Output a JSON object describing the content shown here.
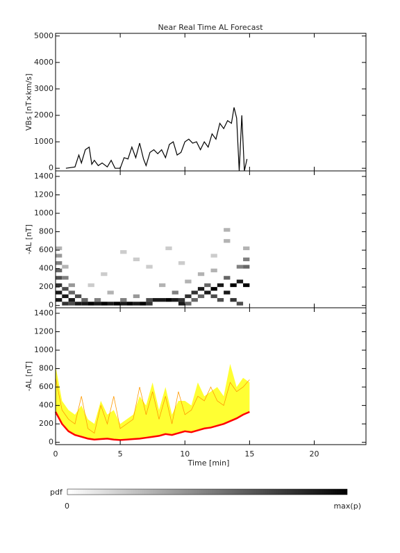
{
  "chart_data": [
    {
      "type": "line",
      "title": "Near Real Time AL Forecast",
      "ylabel": "VBs [nT×km/s]",
      "color": "#000000",
      "x": [
        0.8,
        1.5,
        1.8,
        2,
        2.3,
        2.6,
        2.8,
        3,
        3.3,
        3.6,
        4,
        4.3,
        4.6,
        5,
        5.3,
        5.6,
        5.9,
        6.2,
        6.5,
        6.8,
        7,
        7.3,
        7.6,
        7.9,
        8.2,
        8.5,
        8.8,
        9.1,
        9.4,
        9.7,
        10,
        10.3,
        10.6,
        10.9,
        11.2,
        11.5,
        11.8,
        12.1,
        12.4,
        12.7,
        13,
        13.3,
        13.6,
        13.8,
        14,
        14.2,
        14.4,
        14.6,
        14.8
      ],
      "values": [
        0,
        50,
        500,
        200,
        700,
        800,
        150,
        300,
        100,
        200,
        50,
        300,
        0,
        0,
        400,
        350,
        800,
        400,
        950,
        350,
        100,
        600,
        700,
        550,
        700,
        400,
        900,
        1000,
        500,
        600,
        1000,
        1100,
        950,
        1000,
        700,
        1000,
        800,
        1300,
        1100,
        1700,
        1500,
        1800,
        1700,
        2300,
        1900,
        -100,
        2000,
        -100,
        350
      ],
      "xlim": [
        0,
        24
      ],
      "xticks": [
        0,
        5,
        10,
        15,
        20
      ],
      "ylim": [
        -100,
        5100
      ],
      "yticks": [
        0,
        1000,
        2000,
        3000,
        4000,
        5000
      ]
    },
    {
      "type": "heatmap",
      "ylabel": "-AL [nT]",
      "cell_width": 0.5,
      "cell_height": 40,
      "cells": [
        [
          0,
          600,
          0.3
        ],
        [
          0,
          520,
          0.4
        ],
        [
          0,
          440,
          0.5
        ],
        [
          0,
          360,
          0.6
        ],
        [
          0,
          280,
          0.7
        ],
        [
          0,
          200,
          0.8
        ],
        [
          0,
          120,
          0.9
        ],
        [
          0,
          40,
          0.9
        ],
        [
          0.5,
          400,
          0.3
        ],
        [
          0.5,
          280,
          0.5
        ],
        [
          0.5,
          160,
          0.7
        ],
        [
          0.5,
          80,
          0.9
        ],
        [
          0.5,
          0,
          0.8
        ],
        [
          1,
          200,
          0.4
        ],
        [
          1,
          120,
          0.6
        ],
        [
          1,
          40,
          0.9
        ],
        [
          1,
          0,
          0.7
        ],
        [
          1.5,
          80,
          0.7
        ],
        [
          1.5,
          0,
          0.9
        ],
        [
          2,
          0,
          0.9
        ],
        [
          2,
          40,
          0.6
        ],
        [
          2.5,
          0,
          1
        ],
        [
          3,
          0,
          0.9
        ],
        [
          3,
          40,
          0.5
        ],
        [
          3.5,
          0,
          1
        ],
        [
          4,
          0,
          0.9
        ],
        [
          4,
          120,
          0.3
        ],
        [
          4.5,
          0,
          1
        ],
        [
          5,
          0,
          0.9
        ],
        [
          5,
          40,
          0.5
        ],
        [
          5.5,
          0,
          1
        ],
        [
          6,
          0,
          0.9
        ],
        [
          6,
          80,
          0.4
        ],
        [
          6.5,
          0,
          1
        ],
        [
          7,
          40,
          0.7
        ],
        [
          7,
          0,
          0.8
        ],
        [
          7,
          400,
          0.2
        ],
        [
          7.5,
          40,
          0.9
        ],
        [
          8,
          40,
          0.9
        ],
        [
          8,
          200,
          0.3
        ],
        [
          8.5,
          40,
          1
        ],
        [
          9,
          40,
          0.9
        ],
        [
          9,
          120,
          0.5
        ],
        [
          9.5,
          40,
          0.8
        ],
        [
          9.5,
          0,
          0.9
        ],
        [
          10,
          80,
          0.8
        ],
        [
          10,
          0,
          0.6
        ],
        [
          10,
          240,
          0.3
        ],
        [
          10.5,
          120,
          0.8
        ],
        [
          10.5,
          40,
          0.6
        ],
        [
          11,
          160,
          0.9
        ],
        [
          11,
          80,
          0.6
        ],
        [
          11,
          320,
          0.3
        ],
        [
          11.5,
          120,
          0.9
        ],
        [
          11.5,
          200,
          0.6
        ],
        [
          12,
          160,
          1
        ],
        [
          12,
          80,
          0.7
        ],
        [
          12,
          360,
          0.3
        ],
        [
          12.5,
          200,
          0.9
        ],
        [
          12.5,
          40,
          0.7
        ],
        [
          13,
          120,
          0.9
        ],
        [
          13,
          280,
          0.6
        ],
        [
          13,
          800,
          0.3
        ],
        [
          13.5,
          200,
          1
        ],
        [
          13.5,
          40,
          0.8
        ],
        [
          14,
          240,
          0.9
        ],
        [
          14,
          400,
          0.5
        ],
        [
          14,
          0,
          0.7
        ],
        [
          14.5,
          200,
          1
        ],
        [
          14.5,
          480,
          0.5
        ],
        [
          14.5,
          600,
          0.3
        ],
        [
          2.5,
          200,
          0.2
        ],
        [
          3.5,
          320,
          0.2
        ],
        [
          5,
          560,
          0.2
        ],
        [
          6,
          480,
          0.2
        ],
        [
          8.5,
          600,
          0.2
        ],
        [
          9.5,
          440,
          0.2
        ],
        [
          12,
          520,
          0.2
        ],
        [
          13,
          680,
          0.3
        ],
        [
          14.5,
          400,
          0.6
        ]
      ],
      "xlim": [
        0,
        24
      ],
      "xticks": [
        0,
        5,
        10,
        15,
        20
      ],
      "ylim": [
        -25,
        1460
      ],
      "yticks": [
        0,
        200,
        400,
        600,
        800,
        1000,
        1200,
        1400
      ]
    },
    {
      "type": "band",
      "ylabel": "-AL [nT]",
      "xlabel": "Time [min]",
      "x": [
        0,
        0.5,
        1,
        1.5,
        2,
        2.5,
        3,
        3.5,
        4,
        4.5,
        5,
        5.5,
        6,
        6.5,
        7,
        7.5,
        8,
        8.5,
        9,
        9.5,
        10,
        10.5,
        11,
        11.5,
        12,
        12.5,
        13,
        13.5,
        14,
        14.5,
        15
      ],
      "band": {
        "color": "#ffff33",
        "upper": [
          830,
          450,
          350,
          300,
          400,
          250,
          200,
          450,
          300,
          350,
          200,
          250,
          300,
          500,
          400,
          650,
          350,
          600,
          300,
          450,
          450,
          400,
          650,
          500,
          550,
          600,
          500,
          850,
          600,
          700,
          650
        ]
      },
      "lines": [
        {
          "color": "#ff9900",
          "values": [
            700,
            350,
            250,
            200,
            500,
            150,
            100,
            400,
            200,
            500,
            150,
            200,
            250,
            600,
            300,
            550,
            250,
            500,
            200,
            550,
            300,
            350,
            500,
            450,
            600,
            450,
            400,
            650,
            550,
            600,
            680
          ]
        },
        {
          "color": "#ff0000",
          "values": [
            330,
            200,
            120,
            80,
            60,
            40,
            30,
            35,
            40,
            30,
            25,
            30,
            35,
            40,
            50,
            60,
            70,
            90,
            80,
            100,
            120,
            110,
            130,
            150,
            160,
            180,
            200,
            230,
            260,
            300,
            330
          ]
        }
      ],
      "xlim": [
        0,
        24
      ],
      "xticks": [
        0,
        5,
        10,
        15,
        20
      ],
      "ylim": [
        -25,
        1460
      ],
      "yticks": [
        0,
        200,
        400,
        600,
        800,
        1000,
        1200,
        1400
      ]
    },
    {
      "type": "colorbar",
      "title": "pdf",
      "labels": [
        "0",
        "max(p)"
      ]
    }
  ]
}
